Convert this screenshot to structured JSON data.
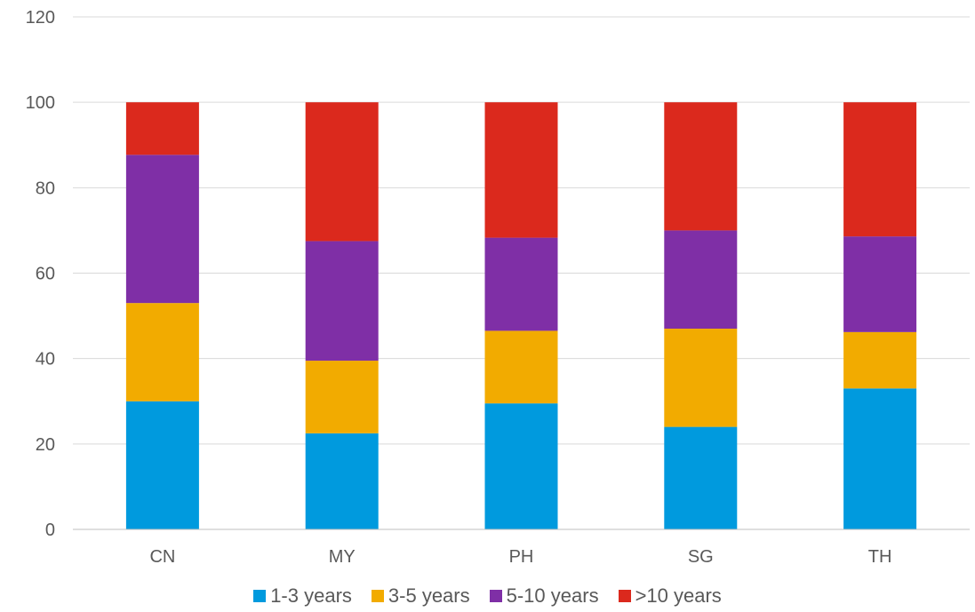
{
  "chart_data": {
    "type": "bar",
    "stacked": true,
    "categories": [
      "CN",
      "MY",
      "PH",
      "SG",
      "TH"
    ],
    "series": [
      {
        "name": "1-3 years",
        "color": "#009ADE",
        "values": [
          30,
          22.5,
          29.5,
          24,
          33
        ]
      },
      {
        "name": "3-5 years",
        "color": "#F2AB00",
        "values": [
          23,
          17,
          17,
          23,
          13.2
        ]
      },
      {
        "name": "5-10 years",
        "color": "#7F2FA6",
        "values": [
          34.7,
          28,
          21.8,
          23,
          22.4
        ]
      },
      {
        "name": ">10 years",
        "color": "#DB291D",
        "values": [
          12.3,
          32.5,
          31.7,
          30,
          31.4
        ]
      }
    ],
    "ylim": [
      0,
      120
    ],
    "yticks": [
      "0",
      "20",
      "40",
      "60",
      "80",
      "100",
      "120"
    ],
    "grid": true,
    "legend_position": "bottom"
  }
}
